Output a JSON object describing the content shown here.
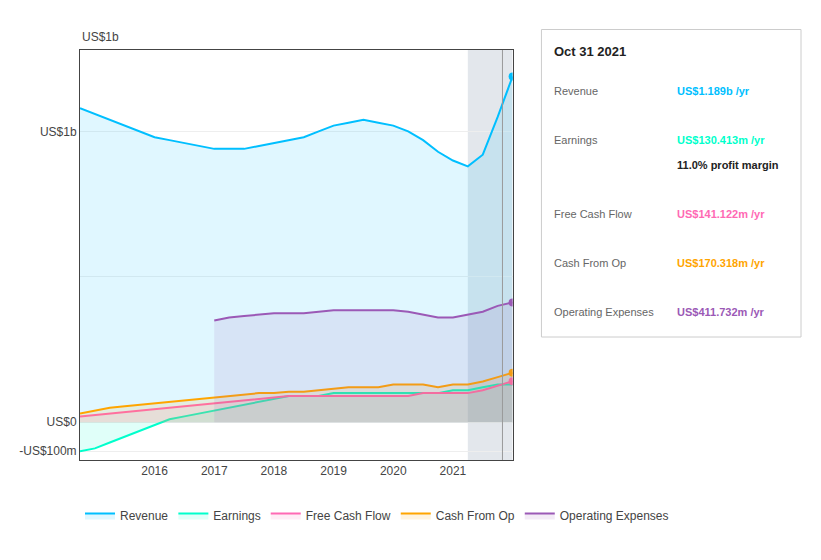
{
  "chart_data": {
    "type": "area",
    "ylabel": "US$1b",
    "x": [
      2014.75,
      2015.0,
      2015.25,
      2015.5,
      2015.75,
      2016.0,
      2016.25,
      2016.5,
      2016.75,
      2017.0,
      2017.25,
      2017.5,
      2017.75,
      2018.0,
      2018.25,
      2018.5,
      2018.75,
      2019.0,
      2019.25,
      2019.5,
      2019.75,
      2020.0,
      2020.25,
      2020.5,
      2020.75,
      2021.0,
      2021.25,
      2021.5,
      2021.75,
      2022.0
    ],
    "series": [
      {
        "name": "Revenue",
        "color": "#00bfff",
        "marker": "circle",
        "values": [
          1.08,
          1.06,
          1.04,
          1.02,
          1.0,
          0.98,
          0.97,
          0.96,
          0.95,
          0.94,
          0.94,
          0.94,
          0.95,
          0.96,
          0.97,
          0.98,
          1.0,
          1.02,
          1.03,
          1.04,
          1.03,
          1.02,
          1.0,
          0.97,
          0.93,
          0.9,
          0.88,
          0.92,
          1.05,
          1.189
        ]
      },
      {
        "name": "Earnings",
        "color": "#00ffcc",
        "values": [
          -0.1,
          -0.09,
          -0.07,
          -0.05,
          -0.03,
          -0.01,
          0.01,
          0.02,
          0.03,
          0.04,
          0.05,
          0.06,
          0.07,
          0.08,
          0.09,
          0.09,
          0.09,
          0.1,
          0.1,
          0.1,
          0.1,
          0.1,
          0.1,
          0.1,
          0.1,
          0.11,
          0.11,
          0.12,
          0.13,
          0.13
        ]
      },
      {
        "name": "Free Cash Flow",
        "color": "#ff69b4",
        "marker": "circle",
        "values": [
          0.02,
          0.025,
          0.03,
          0.035,
          0.04,
          0.045,
          0.05,
          0.055,
          0.06,
          0.065,
          0.07,
          0.075,
          0.08,
          0.085,
          0.09,
          0.09,
          0.09,
          0.09,
          0.09,
          0.09,
          0.09,
          0.09,
          0.09,
          0.1,
          0.1,
          0.1,
          0.1,
          0.11,
          0.125,
          0.141
        ]
      },
      {
        "name": "Cash From Op",
        "color": "#ffa500",
        "marker": "circle",
        "values": [
          0.03,
          0.04,
          0.05,
          0.055,
          0.06,
          0.065,
          0.07,
          0.075,
          0.08,
          0.085,
          0.09,
          0.095,
          0.1,
          0.1,
          0.105,
          0.105,
          0.11,
          0.115,
          0.12,
          0.12,
          0.12,
          0.13,
          0.13,
          0.13,
          0.12,
          0.13,
          0.13,
          0.14,
          0.155,
          0.17
        ]
      },
      {
        "name": "Operating Expenses",
        "color": "#9b59b6",
        "marker": "circle",
        "values": [
          null,
          null,
          null,
          null,
          null,
          null,
          null,
          null,
          null,
          0.35,
          0.36,
          0.365,
          0.37,
          0.375,
          0.375,
          0.375,
          0.38,
          0.385,
          0.385,
          0.385,
          0.385,
          0.385,
          0.38,
          0.37,
          0.36,
          0.36,
          0.37,
          0.38,
          0.4,
          0.412
        ]
      }
    ],
    "xlim": [
      2014.75,
      2022.0
    ],
    "xticks": [
      2016,
      2017,
      2018,
      2019,
      2020,
      2021
    ],
    "ylim": [
      -0.13,
      1.28
    ],
    "yticks": [
      {
        "value": -0.1,
        "label": "-US$100m"
      },
      {
        "value": 0.0,
        "label": "US$0"
      },
      {
        "value": 0.5,
        "label": null
      },
      {
        "value": 1.0,
        "label": "US$1b"
      }
    ],
    "grid": true,
    "legend": "bottom",
    "shaded_region": [
      2021.25,
      2022.0
    ],
    "vertical_line_x": 2021.83,
    "tooltip": {
      "title": "Oct 31 2021",
      "rows": [
        {
          "label": "Revenue",
          "value": "US$1.189b /yr",
          "color": "#00bfff"
        },
        {
          "label": "Earnings",
          "value": "US$130.413m /yr",
          "color": "#00ffcc",
          "sub": "11.0% profit margin"
        },
        {
          "label": "Free Cash Flow",
          "value": "US$141.122m /yr",
          "color": "#ff69b4"
        },
        {
          "label": "Cash From Op",
          "value": "US$170.318m /yr",
          "color": "#ffa500"
        },
        {
          "label": "Operating Expenses",
          "value": "US$411.732m /yr",
          "color": "#9b59b6"
        }
      ]
    }
  }
}
